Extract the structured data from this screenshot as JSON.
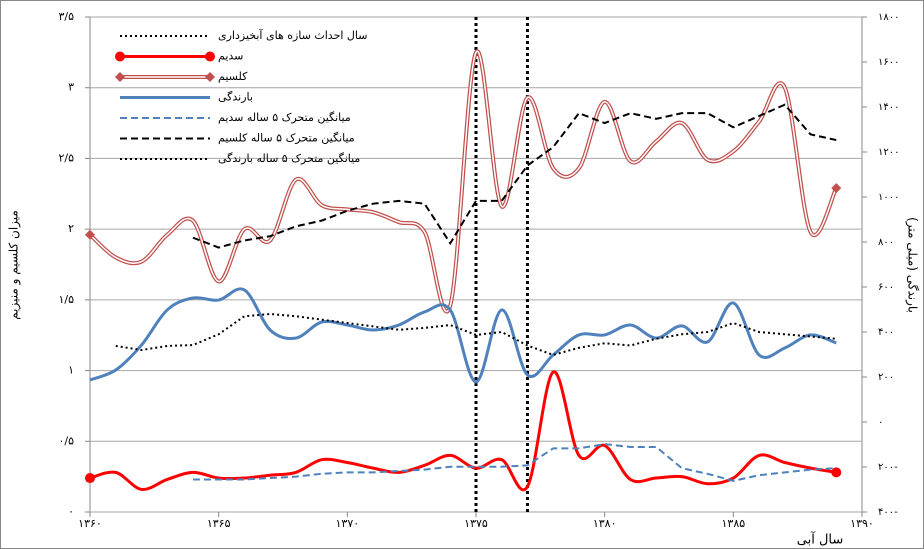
{
  "chart_data": {
    "type": "line",
    "x_label": "سال آبی",
    "y_label": "میزان کلسیم و منیزیم",
    "y2_label": "بارندگی (میلی متر)",
    "x": [
      1360,
      1361,
      1362,
      1363,
      1364,
      1365,
      1366,
      1367,
      1368,
      1369,
      1370,
      1371,
      1372,
      1373,
      1374,
      1375,
      1376,
      1377,
      1378,
      1379,
      1380,
      1381,
      1382,
      1383,
      1384,
      1385,
      1386,
      1387,
      1388,
      1389
    ],
    "xlim": [
      1360,
      1390
    ],
    "xticks": [
      {
        "value": 1360,
        "label": "۱۳۶۰"
      },
      {
        "value": 1365,
        "label": "۱۳۶۵"
      },
      {
        "value": 1370,
        "label": "۱۳۷۰"
      },
      {
        "value": 1375,
        "label": "۱۳۷۵"
      },
      {
        "value": 1380,
        "label": "۱۳۸۰"
      },
      {
        "value": 1385,
        "label": "۱۳۸۵"
      },
      {
        "value": 1390,
        "label": "۱۳۹۰"
      }
    ],
    "ylim": [
      0,
      3.5
    ],
    "yticks": [
      {
        "value": 0,
        "label": "۰"
      },
      {
        "value": 0.5,
        "label": "۰/۵"
      },
      {
        "value": 1,
        "label": "۱"
      },
      {
        "value": 1.5,
        "label": "۱/۵"
      },
      {
        "value": 2,
        "label": "۲"
      },
      {
        "value": 2.5,
        "label": "۲/۵"
      },
      {
        "value": 3,
        "label": "۳"
      },
      {
        "value": 3.5,
        "label": "۳/۵"
      }
    ],
    "y2lim": [
      -400,
      1800
    ],
    "y2ticks": [
      {
        "value": -400,
        "label": "۴۰۰-"
      },
      {
        "value": -200,
        "label": "۲۰۰-"
      },
      {
        "value": 0,
        "label": "۰"
      },
      {
        "value": 200,
        "label": "۲۰۰"
      },
      {
        "value": 400,
        "label": "۴۰۰"
      },
      {
        "value": 600,
        "label": "۶۰۰"
      },
      {
        "value": 800,
        "label": "۸۰۰"
      },
      {
        "value": 1000,
        "label": "۱۰۰۰"
      },
      {
        "value": 1200,
        "label": "۱۲۰۰"
      },
      {
        "value": 1400,
        "label": "۱۴۰۰"
      },
      {
        "value": 1600,
        "label": "۱۶۰۰"
      },
      {
        "value": 1800,
        "label": "۱۸۰۰"
      }
    ],
    "grid": true,
    "legend": "top-left",
    "event_lines": {
      "name": "سال احداث سازه های آبخیزداری",
      "color": "#000000",
      "x": [
        1375,
        1377
      ]
    },
    "series": [
      {
        "name": "سدیم",
        "color": "#ff0000",
        "style": "solid",
        "marker": "circle",
        "values": [
          0.24,
          0.28,
          0.16,
          0.23,
          0.28,
          0.24,
          0.24,
          0.26,
          0.28,
          0.37,
          0.35,
          0.31,
          0.28,
          0.33,
          0.4,
          0.31,
          0.37,
          0.18,
          0.99,
          0.4,
          0.47,
          0.23,
          0.24,
          0.25,
          0.2,
          0.24,
          0.4,
          0.35,
          0.31,
          0.28
        ]
      },
      {
        "name": "کلسیم",
        "color": "#c0504d",
        "style": "double",
        "marker": "diamond",
        "values": [
          1.96,
          1.8,
          1.77,
          1.96,
          2.06,
          1.63,
          2.0,
          1.92,
          2.35,
          2.17,
          2.14,
          2.12,
          2.05,
          1.98,
          1.46,
          3.25,
          2.16,
          2.93,
          2.43,
          2.43,
          2.9,
          2.48,
          2.62,
          2.75,
          2.49,
          2.55,
          2.76,
          3.0,
          1.98,
          2.29
        ]
      },
      {
        "name": "بارندگی",
        "color": "#4f81bd",
        "style": "solid",
        "axis": "y2",
        "values": [
          187,
          231,
          342,
          498,
          551,
          542,
          587,
          409,
          373,
          444,
          431,
          409,
          431,
          489,
          498,
          178,
          498,
          209,
          298,
          387,
          387,
          431,
          373,
          427,
          356,
          529,
          298,
          329,
          387,
          351
        ]
      },
      {
        "name": "میانگین متحرک ۵ ساله سدیم",
        "color": "#4f81bd",
        "style": "dashed",
        "values": [
          null,
          null,
          null,
          null,
          0.23,
          0.23,
          0.23,
          0.24,
          0.25,
          0.27,
          0.28,
          0.28,
          0.29,
          0.3,
          0.32,
          0.32,
          0.32,
          0.33,
          0.45,
          0.45,
          0.48,
          0.46,
          0.46,
          0.31,
          0.27,
          0.22,
          0.26,
          0.28,
          0.3,
          0.31
        ]
      },
      {
        "name": "میانگین متحرک ۵ ساله کلسیم",
        "color": "#000000",
        "style": "dashed",
        "values": [
          null,
          null,
          null,
          null,
          1.94,
          1.87,
          1.92,
          1.95,
          2.02,
          2.06,
          2.13,
          2.18,
          2.2,
          2.18,
          1.9,
          2.2,
          2.2,
          2.45,
          2.58,
          2.82,
          2.75,
          2.82,
          2.78,
          2.82,
          2.82,
          2.72,
          2.8,
          2.88,
          2.67,
          2.63
        ]
      },
      {
        "name": "میانگین متحرک ۵ ساله بارندگی",
        "color": "#000000",
        "style": "dotted",
        "axis": "y2",
        "values": [
          null,
          338,
          320,
          338,
          342,
          390,
          470,
          480,
          470,
          455,
          440,
          425,
          410,
          418,
          431,
          387,
          400,
          340,
          298,
          330,
          350,
          340,
          370,
          390,
          400,
          440,
          400,
          390,
          380,
          370
        ]
      }
    ]
  }
}
